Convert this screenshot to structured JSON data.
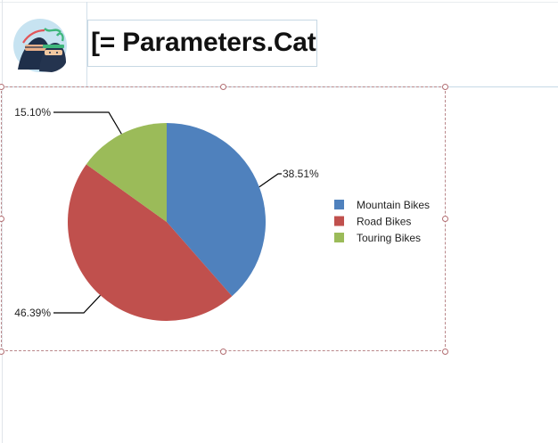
{
  "header": {
    "parameter_text": "[= Parameters.Cat",
    "logo_icon": "ninja-avatar-icon"
  },
  "colors": {
    "mountain": "#4F81BD",
    "road": "#C0504D",
    "touring": "#9BBB59"
  },
  "chart_data": {
    "type": "pie",
    "title": "",
    "categories": [
      "Mountain Bikes",
      "Road Bikes",
      "Touring Bikes"
    ],
    "values": [
      38.51,
      46.39,
      15.1
    ],
    "data_labels": [
      "38.51%",
      "46.39%",
      "15.10%"
    ],
    "legend_position": "right"
  }
}
